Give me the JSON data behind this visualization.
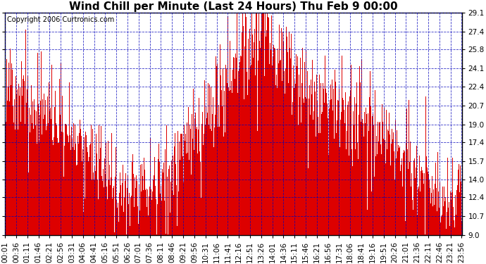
{
  "title": "Wind Chill per Minute (Last 24 Hours) Thu Feb 9 00:00",
  "copyright": "Copyright 2006 Curtronics.com",
  "yticks": [
    9.0,
    10.7,
    12.4,
    14.0,
    15.7,
    17.4,
    19.0,
    20.7,
    22.4,
    24.1,
    25.8,
    27.4,
    29.1
  ],
  "ymin": 9.0,
  "ymax": 29.1,
  "bar_color": "#dd0000",
  "background_color": "#ffffff",
  "plot_bg_color": "#ffffff",
  "grid_color": "#0000bb",
  "title_fontsize": 11,
  "copyright_fontsize": 7,
  "tick_fontsize": 7.5,
  "xtick_labels": [
    "00:01",
    "00:36",
    "01:11",
    "01:46",
    "02:21",
    "02:56",
    "03:31",
    "04:06",
    "04:41",
    "05:16",
    "05:51",
    "06:26",
    "07:01",
    "07:36",
    "08:11",
    "08:46",
    "09:21",
    "09:56",
    "10:31",
    "11:06",
    "11:41",
    "12:16",
    "12:51",
    "13:26",
    "14:01",
    "14:36",
    "15:11",
    "15:46",
    "16:21",
    "16:56",
    "17:31",
    "18:06",
    "18:41",
    "19:16",
    "19:51",
    "20:26",
    "21:01",
    "21:36",
    "22:11",
    "22:46",
    "23:21",
    "23:56"
  ],
  "trend_points": [
    [
      0,
      22.0
    ],
    [
      60,
      21.5
    ],
    [
      120,
      20.5
    ],
    [
      180,
      19.0
    ],
    [
      240,
      17.5
    ],
    [
      300,
      15.5
    ],
    [
      360,
      13.5
    ],
    [
      420,
      12.5
    ],
    [
      480,
      13.5
    ],
    [
      540,
      15.5
    ],
    [
      600,
      18.0
    ],
    [
      660,
      21.0
    ],
    [
      720,
      23.5
    ],
    [
      750,
      26.0
    ],
    [
      780,
      27.5
    ],
    [
      810,
      28.5
    ],
    [
      840,
      26.0
    ],
    [
      900,
      24.0
    ],
    [
      960,
      22.5
    ],
    [
      1020,
      21.0
    ],
    [
      1080,
      20.5
    ],
    [
      1140,
      19.5
    ],
    [
      1200,
      18.0
    ],
    [
      1260,
      16.0
    ],
    [
      1320,
      14.0
    ],
    [
      1380,
      12.0
    ],
    [
      1440,
      11.5
    ]
  ]
}
